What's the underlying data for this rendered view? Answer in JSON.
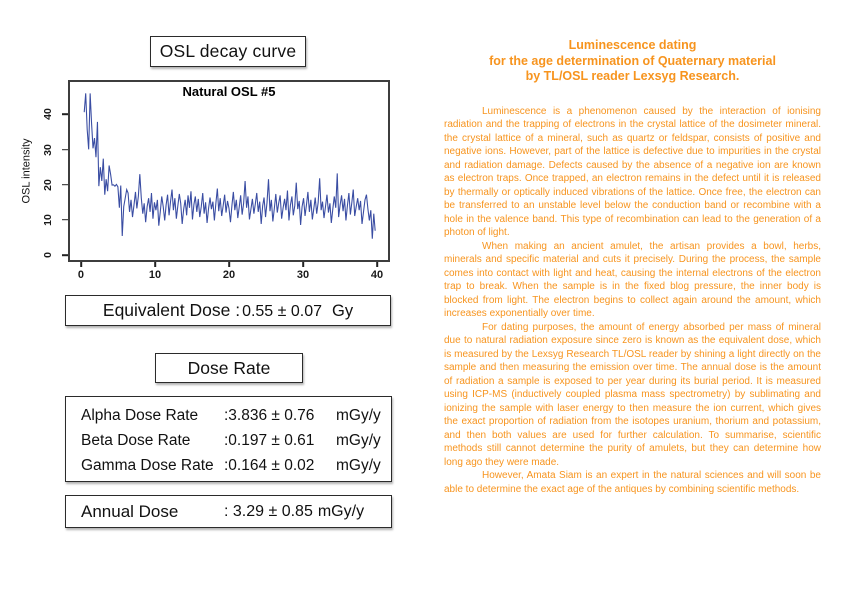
{
  "page": {
    "background": "#ffffff"
  },
  "left_panel": {
    "figure_title": "OSL decay curve",
    "equivalent_dose": {
      "label": "Equivalent Dose :",
      "value": "0.55 ± 0.07",
      "unit": "Gy"
    },
    "dose_rate_title": "Dose Rate",
    "dose_rates": [
      {
        "label": "Alpha Dose Rate",
        "value": ":3.836 ± 0.76",
        "unit": "mGy/y"
      },
      {
        "label": "Beta Dose Rate",
        "value": ":0.197 ± 0.61",
        "unit": "mGy/y"
      },
      {
        "label": "Gamma Dose Rate",
        "value": ":0.164 ± 0.02",
        "unit": "mGy/y"
      }
    ],
    "annual_dose": {
      "label": "Annual Dose",
      "value": ": 3.29 ± 0.85",
      "unit": "mGy/y"
    }
  },
  "chart_data": {
    "type": "line",
    "title": "Natural OSL #5",
    "xlabel": "",
    "ylabel": "OSL intensity",
    "x_ticks": [
      0,
      10,
      20,
      30,
      40
    ],
    "y_ticks": [
      0,
      10,
      20,
      30,
      40
    ],
    "xlim": [
      -1.75,
      41.75
    ],
    "ylim": [
      -2,
      49.8
    ],
    "grid": false,
    "legend": false,
    "line_color": "#3a4da3",
    "x_start": 0.2,
    "x_step": 0.2,
    "values": [
      41.0,
      46.5,
      36.0,
      30.2,
      46.5,
      38.0,
      30.5,
      33.5,
      27.9,
      38.2,
      19.5,
      25.0,
      21.0,
      27.5,
      17.0,
      21.5,
      18.0,
      25.5,
      23.0,
      19.8,
      19.9,
      19.5,
      20.0,
      19.3,
      13.2,
      19.7,
      5.0,
      13.5,
      16.0,
      18.5,
      17.5,
      12.0,
      15.5,
      10.5,
      14.0,
      17.8,
      13.0,
      16.5,
      23.0,
      16.0,
      11.5,
      14.5,
      9.0,
      13.5,
      16.0,
      12.0,
      17.5,
      10.0,
      14.8,
      12.5,
      15.5,
      8.0,
      12.0,
      16.5,
      13.5,
      9.5,
      14.0,
      17.0,
      11.0,
      15.0,
      18.5,
      12.5,
      16.0,
      10.0,
      13.8,
      17.2,
      14.5,
      8.5,
      12.8,
      15.5,
      11.0,
      16.8,
      13.2,
      18.0,
      9.8,
      14.2,
      16.5,
      12.0,
      15.8,
      10.5,
      13.5,
      17.5,
      11.5,
      14.8,
      8.8,
      13.0,
      16.2,
      12.8,
      15.0,
      9.5,
      14.5,
      18.8,
      12.2,
      16.0,
      10.8,
      13.8,
      17.0,
      11.8,
      15.2,
      13.0,
      9.0,
      14.0,
      17.8,
      12.5,
      15.5,
      10.2,
      13.5,
      16.8,
      11.2,
      14.5,
      21.0,
      13.2,
      16.5,
      9.8,
      12.8,
      15.8,
      11.5,
      14.2,
      17.5,
      12.0,
      15.0,
      8.5,
      13.8,
      16.2,
      10.5,
      14.8,
      21.5,
      12.2,
      15.5,
      9.2,
      13.0,
      17.2,
      11.8,
      14.5,
      16.8,
      10.0,
      13.2,
      15.8,
      12.5,
      18.2,
      9.5,
      14.0,
      16.5,
      11.0,
      13.8,
      20.5,
      12.8,
      15.2,
      8.2,
      13.5,
      16.0,
      10.8,
      14.2,
      17.8,
      12.0,
      15.5,
      9.8,
      13.0,
      16.2,
      11.5,
      14.8,
      21.8,
      12.5,
      15.0,
      10.2,
      13.5,
      17.0,
      11.8,
      14.5,
      8.8,
      12.8,
      16.5,
      13.2,
      23.2,
      10.5,
      14.0,
      16.8,
      12.2,
      15.8,
      9.5,
      13.8,
      17.5,
      11.2,
      14.8,
      18.5,
      10.8,
      13.5,
      16.0,
      12.5,
      15.2,
      8.5,
      12.0,
      15.5,
      17.0,
      13.0,
      9.5,
      12.5,
      4.2,
      11.5,
      6.5
    ]
  },
  "right_panel": {
    "text_color": "#f7941e",
    "title_lines": [
      "Luminescence dating",
      "for the age determination of Quaternary material",
      "by TL/OSL reader Lexsyg Research."
    ],
    "paragraphs": [
      "Luminescence is a phenomenon caused by the interaction of ionising radiation and the trapping of electrons in the crystal lattice of the dosimeter mineral. the crystal lattice of a mineral, such as quartz or feldspar, consists of positive and negative ions. However, part of the lattice is defective due to impurities in the crystal and radiation damage. Defects caused by the absence of a negative ion are known as electron traps. Once trapped, an electron remains in the defect until it is released by thermally or optically induced vibrations of the lattice. Once free, the electron can be transferred to an unstable level below the conduction band or recombine with a hole in the valence band. This type of recombination can lead to the generation of a photon of light.",
      "When making an ancient amulet, the artisan provides a bowl, herbs, minerals and specific material and cuts it precisely. During the process, the sample comes into contact with light and heat, causing the internal electrons of the electron trap to break. When the sample is in the fixed blog pressure, the inner body is blocked from light. The electron begins to collect again around the amount, which increases exponentially over time.",
      "For dating purposes, the amount of energy absorbed per mass of mineral due to natural radiation exposure since zero is known as the equivalent dose, which is measured by the Lexsyg Research TL/OSL reader by shining a light directly on the sample and then measuring the emission over time. The annual dose is the amount of radiation a sample is exposed to per year during its burial period. It is measured using ICP-MS (inductively coupled plasma mass spectrometry) by sublimating and ionizing the sample with laser energy to then measure the ion current, which gives the exact proportion of radiation from the isotopes uranium, thorium and potassium, and then both values are used for further calculation. To summarise, scientific methods still cannot determine the purity of amulets, but they can determine how long ago they were made.",
      "However, Amata Siam is an expert in the natural sciences and will soon be able to determine the exact age of the antiques by combining scientific methods."
    ]
  }
}
